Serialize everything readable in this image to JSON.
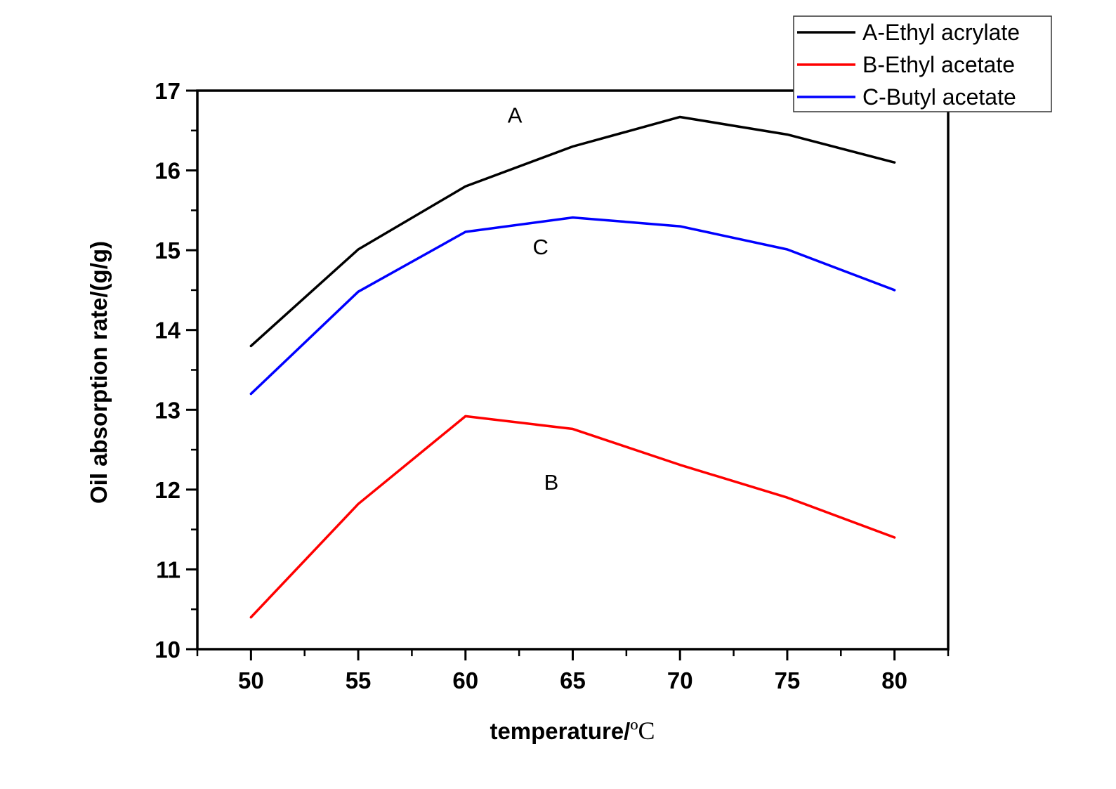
{
  "chart_data": {
    "type": "line",
    "title": "",
    "xlabel": "temperature/",
    "xlabel_unit": "ºC",
    "ylabel": "Oil absorption rate/(g/g)",
    "x": [
      50,
      55,
      60,
      65,
      70,
      75,
      80
    ],
    "xlim": [
      47.5,
      82.5
    ],
    "ylim": [
      10,
      17
    ],
    "x_ticks": [
      50,
      55,
      60,
      65,
      70,
      75,
      80
    ],
    "x_tick_labels": [
      "50",
      "55",
      "60",
      "65",
      "70",
      "75",
      "80"
    ],
    "x_minor_step": 2.5,
    "y_ticks": [
      10,
      11,
      12,
      13,
      14,
      15,
      16,
      17
    ],
    "y_tick_labels": [
      "10",
      "11",
      "12",
      "13",
      "14",
      "15",
      "16",
      "17"
    ],
    "y_minor_step": 0.5,
    "grid": false,
    "legend_position": "top-right",
    "series": [
      {
        "name": "A-Ethyl acrylate",
        "label": "A",
        "color": "#000000",
        "values": [
          13.8,
          15.01,
          15.8,
          16.3,
          16.67,
          16.45,
          16.1
        ],
        "label_at": [
          62.3,
          16.6
        ]
      },
      {
        "name": "B-Ethyl acetate",
        "label": "B",
        "color": "#ff0000",
        "values": [
          10.4,
          11.82,
          12.92,
          12.76,
          12.31,
          11.9,
          11.4
        ],
        "label_at": [
          64.0,
          12.0
        ]
      },
      {
        "name": "C-Butyl acetate",
        "label": "C",
        "color": "#0000ff",
        "values": [
          13.2,
          14.48,
          15.23,
          15.41,
          15.3,
          15.01,
          14.5
        ],
        "label_at": [
          63.5,
          14.95
        ]
      }
    ]
  }
}
